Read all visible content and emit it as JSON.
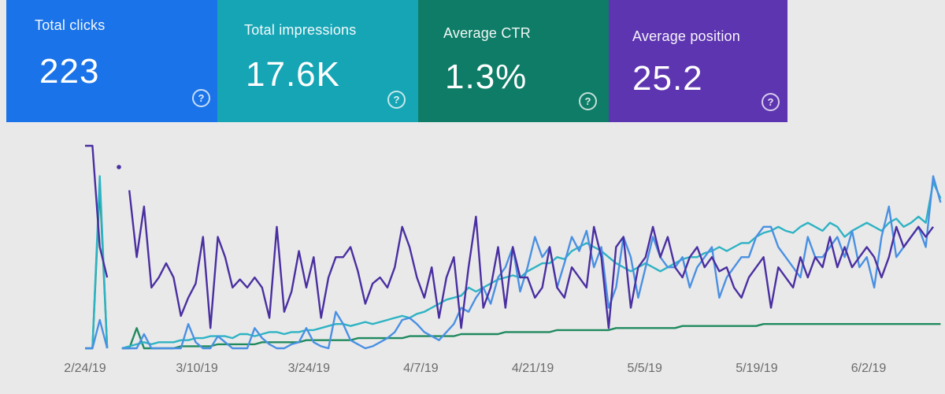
{
  "summary_cards": [
    {
      "id": "clicks",
      "label": "Total clicks",
      "value": "223",
      "color": "#1a73e8"
    },
    {
      "id": "impressions",
      "label": "Total impressions",
      "value": "17.6K",
      "color": "#16a5b5"
    },
    {
      "id": "ctr",
      "label": "Average CTR",
      "value": "1.3%",
      "color": "#0e7c66"
    },
    {
      "id": "position",
      "label": "Average position",
      "value": "25.2",
      "color": "#5e35b1"
    }
  ],
  "help_icon": "?",
  "chart_data": {
    "type": "line",
    "x_tick_labels": [
      "2/24/19",
      "3/10/19",
      "3/24/19",
      "4/7/19",
      "4/21/19",
      "5/5/19",
      "5/19/19",
      "6/2/19"
    ],
    "y_range": [
      0,
      100
    ],
    "grid": false,
    "series": [
      {
        "name": "Average position",
        "color": "#4a2fa0",
        "values": [
          100,
          100,
          50,
          35,
          null,
          null,
          78,
          45,
          70,
          30,
          35,
          42,
          35,
          16,
          25,
          32,
          55,
          10,
          55,
          45,
          30,
          34,
          30,
          35,
          30,
          15,
          60,
          18,
          28,
          48,
          30,
          45,
          15,
          35,
          45,
          45,
          50,
          38,
          22,
          32,
          35,
          30,
          40,
          60,
          50,
          35,
          25,
          40,
          15,
          35,
          45,
          10,
          40,
          65,
          20,
          30,
          50,
          20,
          50,
          35,
          35,
          25,
          30,
          50,
          30,
          25,
          40,
          35,
          30,
          60,
          45,
          10,
          50,
          55,
          20,
          40,
          45,
          60,
          45,
          55,
          40,
          35,
          45,
          50,
          40,
          45,
          38,
          40,
          30,
          25,
          35,
          40,
          45,
          20,
          40,
          35,
          30,
          45,
          35,
          45,
          40,
          55,
          40,
          50,
          40,
          45,
          50,
          45,
          35,
          45,
          60,
          50,
          55,
          60,
          55,
          60
        ]
      },
      {
        "name": "Total clicks",
        "color": "#4a90e2",
        "values": [
          0,
          0,
          14,
          0,
          null,
          0,
          0,
          0,
          7,
          0,
          0,
          0,
          0,
          0,
          12,
          3,
          0,
          0,
          6,
          3,
          0,
          0,
          0,
          10,
          5,
          2,
          0,
          0,
          2,
          3,
          10,
          3,
          1,
          0,
          18,
          12,
          4,
          2,
          0,
          1,
          3,
          5,
          8,
          14,
          15,
          12,
          8,
          6,
          4,
          8,
          12,
          20,
          18,
          25,
          30,
          22,
          35,
          40,
          50,
          28,
          40,
          55,
          45,
          50,
          30,
          42,
          55,
          48,
          58,
          40,
          50,
          20,
          30,
          55,
          45,
          25,
          40,
          55,
          45,
          40,
          40,
          45,
          30,
          40,
          45,
          50,
          25,
          35,
          40,
          45,
          45,
          55,
          60,
          60,
          50,
          45,
          40,
          35,
          55,
          45,
          45,
          50,
          55,
          45,
          58,
          40,
          45,
          30,
          55,
          70,
          45,
          50,
          55,
          60,
          50,
          85,
          72
        ]
      },
      {
        "name": "Total impressions",
        "color": "#2eb3c3",
        "values": [
          0,
          0,
          85,
          0,
          null,
          0,
          1,
          2,
          3,
          2,
          3,
          3,
          3,
          4,
          4,
          5,
          5,
          6,
          6,
          6,
          5,
          7,
          7,
          6,
          7,
          8,
          8,
          7,
          8,
          8,
          9,
          9,
          10,
          11,
          12,
          12,
          11,
          12,
          13,
          12,
          13,
          14,
          15,
          16,
          15,
          17,
          18,
          20,
          22,
          24,
          25,
          26,
          30,
          28,
          30,
          32,
          34,
          35,
          36,
          35,
          38,
          40,
          42,
          42,
          45,
          44,
          48,
          50,
          52,
          50,
          48,
          45,
          42,
          40,
          38,
          40,
          42,
          40,
          38,
          40,
          42,
          44,
          45,
          45,
          47,
          48,
          50,
          48,
          50,
          52,
          52,
          55,
          57,
          58,
          60,
          58,
          57,
          60,
          62,
          60,
          58,
          62,
          60,
          55,
          58,
          60,
          62,
          60,
          58,
          62,
          64,
          60,
          62,
          65,
          62,
          82,
          74
        ]
      },
      {
        "name": "Average CTR",
        "color": "#1f8a5e",
        "values": [
          0,
          0,
          80,
          0,
          null,
          0,
          0,
          10,
          0,
          0,
          0,
          0,
          0,
          1,
          1,
          1,
          1,
          1,
          2,
          2,
          2,
          2,
          2,
          2,
          3,
          3,
          3,
          3,
          3,
          3,
          4,
          4,
          4,
          4,
          4,
          4,
          4,
          5,
          5,
          5,
          5,
          5,
          5,
          5,
          6,
          6,
          6,
          6,
          6,
          6,
          6,
          7,
          7,
          7,
          7,
          7,
          7,
          8,
          8,
          8,
          8,
          8,
          8,
          8,
          9,
          9,
          9,
          9,
          9,
          9,
          9,
          9,
          10,
          10,
          10,
          10,
          10,
          10,
          10,
          10,
          10,
          11,
          11,
          11,
          11,
          11,
          11,
          11,
          11,
          11,
          11,
          11,
          12,
          12,
          12,
          12,
          12,
          12,
          12,
          12,
          12,
          12,
          12,
          12,
          12,
          12,
          12,
          12,
          12,
          12,
          12,
          12,
          12,
          12,
          12,
          12,
          12
        ]
      }
    ]
  }
}
